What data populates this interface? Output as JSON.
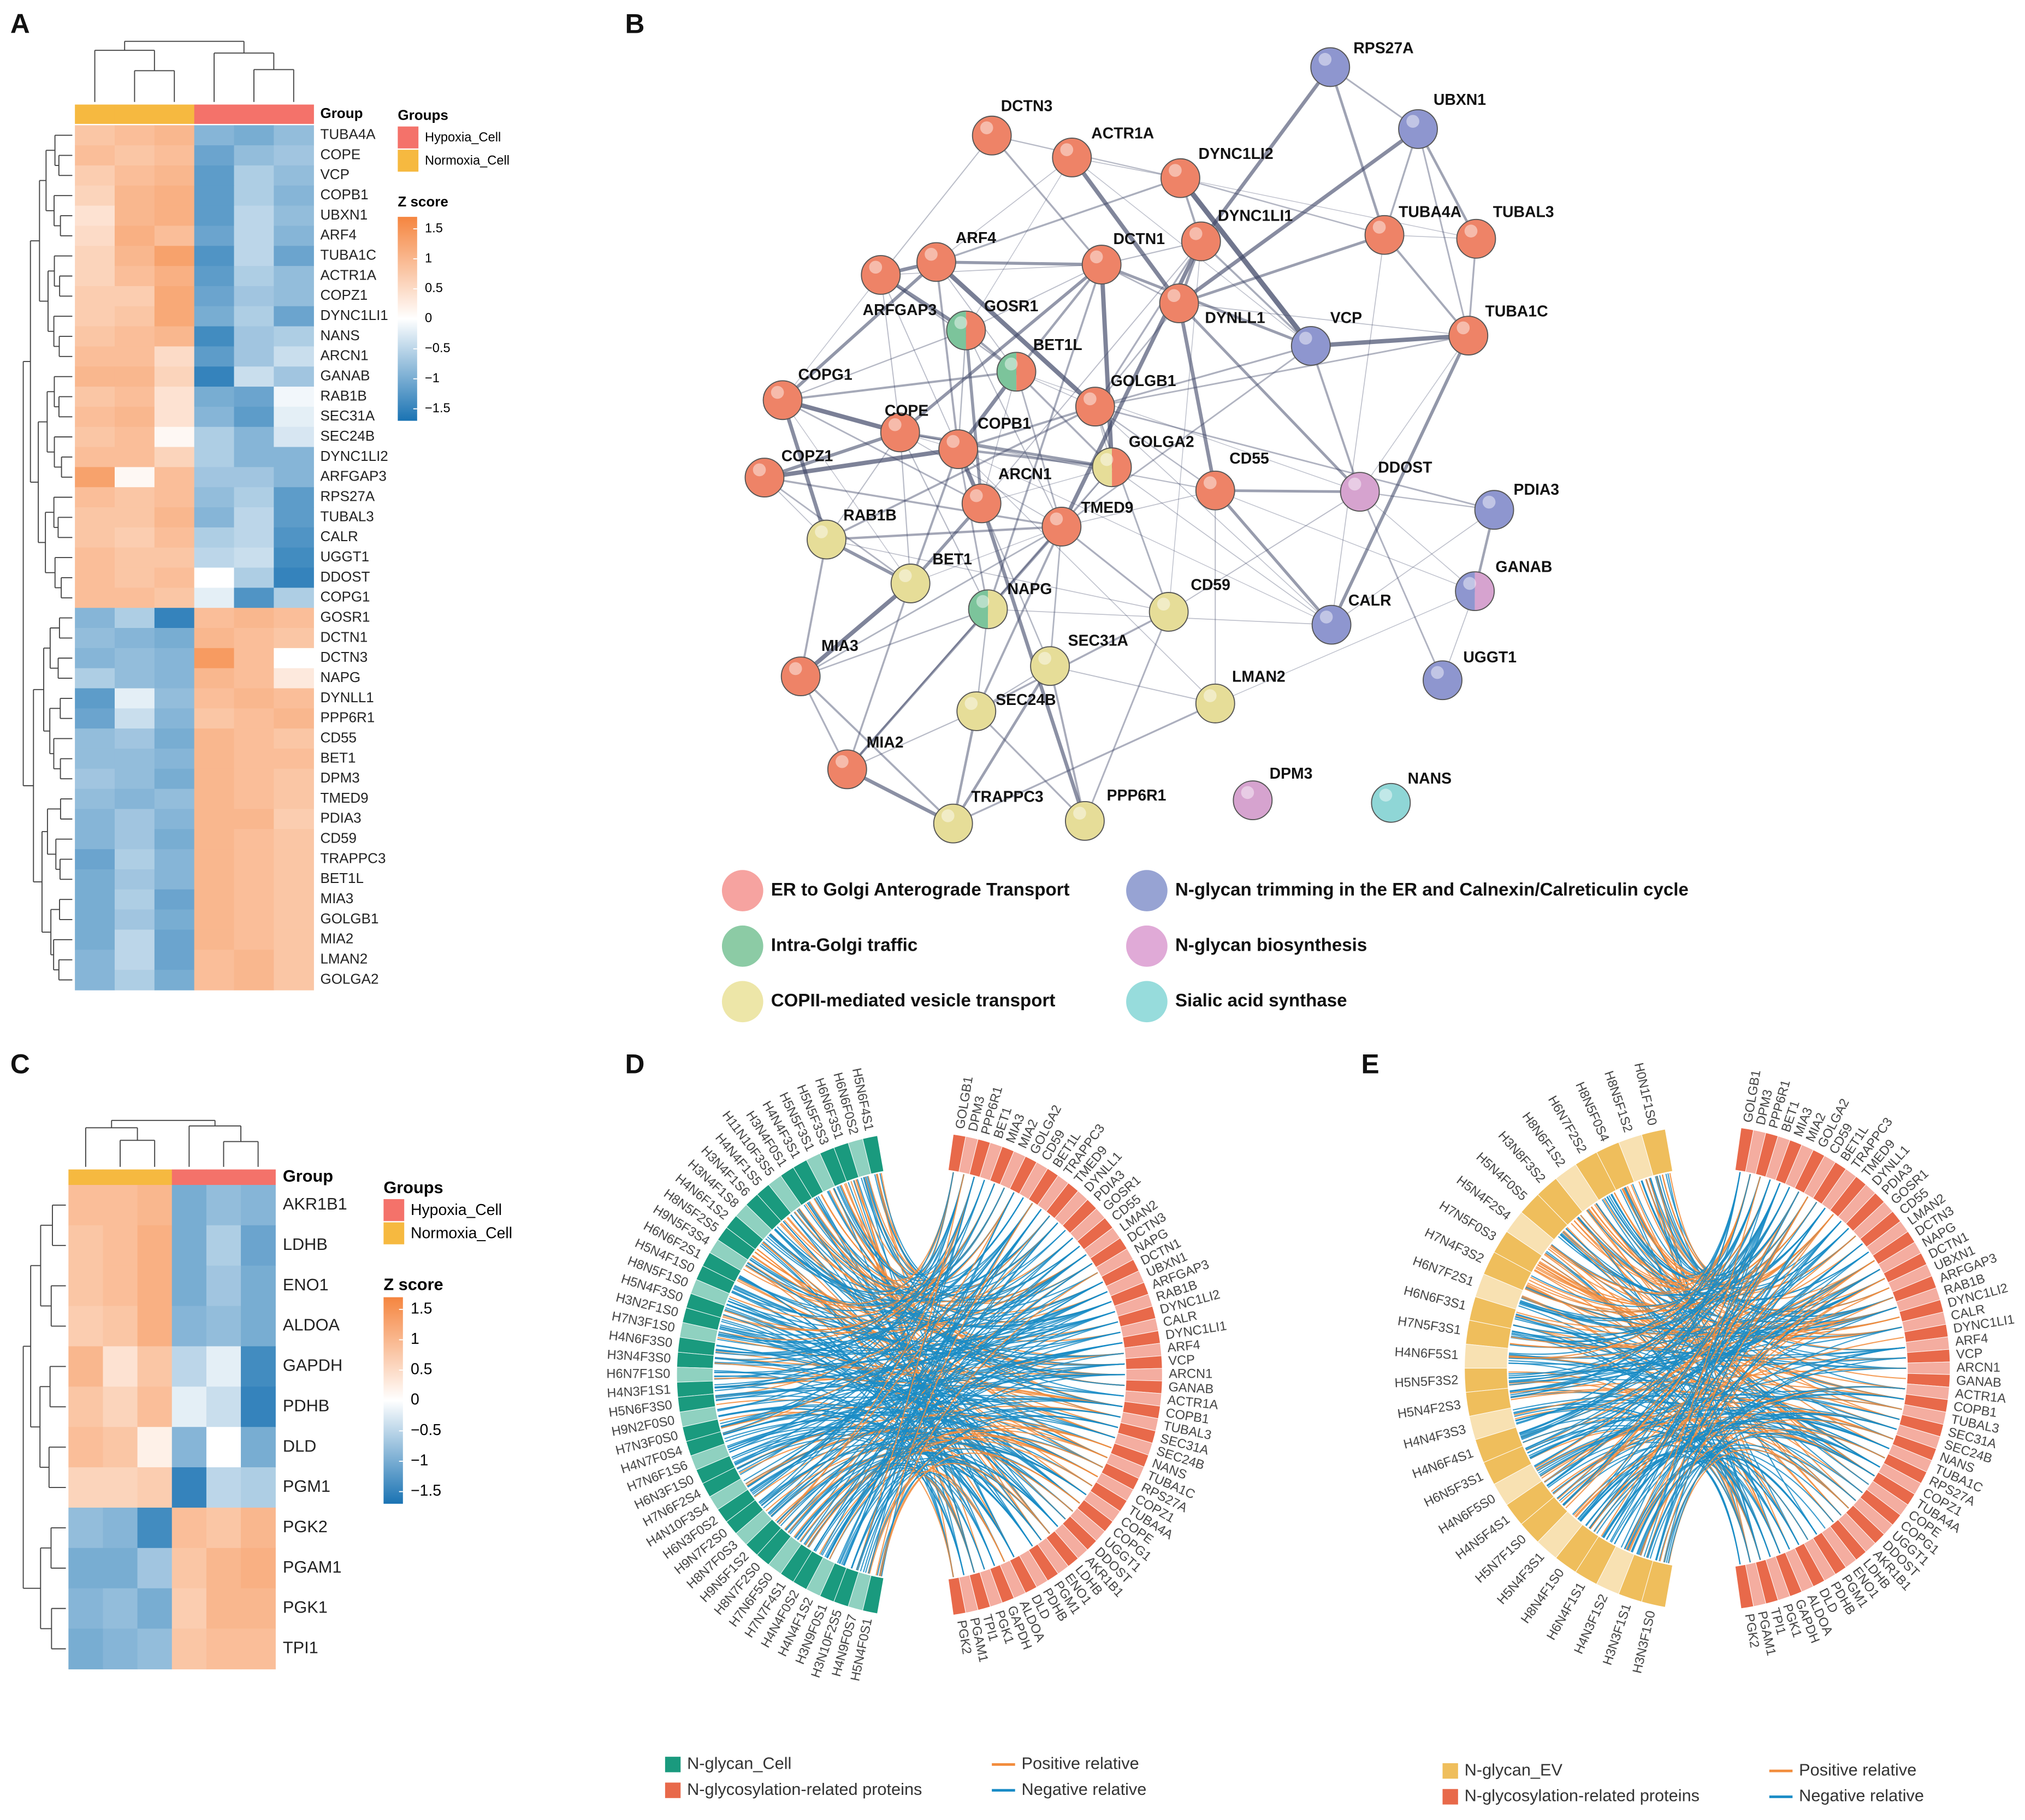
{
  "panel_a": {
    "label": "A",
    "group_header": "Group",
    "legend_title": "Groups",
    "groups": [
      "Hypoxia_Cell",
      "Normoxia_Cell"
    ],
    "group_colors": [
      "#f4726a",
      "#f6b940"
    ],
    "column_colors": [
      "#f6b940",
      "#f6b940",
      "#f6b940",
      "#f4726a",
      "#f4726a",
      "#f4726a"
    ],
    "zscore_title": "Z score",
    "zlim": [
      -1.7,
      1.7
    ],
    "zticks": [
      1.5,
      1,
      0.5,
      0,
      {
        "value": -0.5,
        "label": "−0.5"
      },
      {
        "value": -1,
        "label": "−1"
      },
      {
        "value": -1.5,
        "label": "−1.5"
      }
    ],
    "colorscale": [
      "#1a73b3",
      "#ffffff",
      "#f5853f"
    ],
    "genes": [
      "TUBA4A",
      "COPE",
      "VCP",
      "COPB1",
      "UBXN1",
      "ARF4",
      "TUBA1C",
      "ACTR1A",
      "COPZ1",
      "DYNC1LI1",
      "NANS",
      "ARCN1",
      "GANAB",
      "RAB1B",
      "SEC31A",
      "SEC24B",
      "DYNC1LI2",
      "ARFGAP3",
      "RPS27A",
      "TUBAL3",
      "CALR",
      "UGGT1",
      "DDOST",
      "COPG1",
      "GOSR1",
      "DCTN1",
      "DCTN3",
      "NAPG",
      "DYNLL1",
      "PPP6R1",
      "CD55",
      "BET1",
      "DPM3",
      "TMED9",
      "PDIA3",
      "CD59",
      "TRAPPC3",
      "BET1L",
      "MIA3",
      "GOLGB1",
      "MIA2",
      "LMAN2",
      "GOLGA2"
    ],
    "values": [
      [
        0.8,
        0.9,
        1.0,
        -0.9,
        -1.0,
        -0.8
      ],
      [
        0.9,
        0.8,
        0.9,
        -1.1,
        -0.8,
        -0.7
      ],
      [
        0.7,
        0.9,
        1.0,
        -1.2,
        -0.6,
        -0.8
      ],
      [
        0.6,
        1.0,
        1.1,
        -1.2,
        -0.6,
        -0.9
      ],
      [
        0.4,
        1.0,
        1.1,
        -1.2,
        -0.5,
        -0.8
      ],
      [
        0.5,
        1.1,
        0.9,
        -1.1,
        -0.5,
        -0.9
      ],
      [
        0.6,
        1.0,
        1.3,
        -1.3,
        -0.5,
        -1.1
      ],
      [
        0.6,
        0.9,
        1.1,
        -1.2,
        -0.6,
        -0.8
      ],
      [
        0.7,
        0.7,
        1.2,
        -1.1,
        -0.7,
        -0.8
      ],
      [
        0.7,
        0.8,
        1.2,
        -1.0,
        -0.6,
        -1.1
      ],
      [
        0.8,
        0.9,
        1.0,
        -1.4,
        -0.7,
        -0.6
      ],
      [
        0.9,
        0.9,
        0.5,
        -1.2,
        -0.7,
        -0.4
      ],
      [
        1.0,
        1.0,
        0.6,
        -1.5,
        -0.4,
        -0.7
      ],
      [
        0.8,
        0.9,
        0.4,
        -1.0,
        -1.1,
        -0.1
      ],
      [
        0.9,
        1.0,
        0.4,
        -0.9,
        -1.2,
        -0.2
      ],
      [
        0.8,
        0.9,
        0.1,
        -0.6,
        -0.9,
        -0.3
      ],
      [
        0.9,
        0.9,
        0.6,
        -0.6,
        -0.9,
        -0.9
      ],
      [
        1.3,
        0.1,
        0.9,
        -0.7,
        -0.7,
        -0.9
      ],
      [
        0.9,
        0.8,
        0.9,
        -0.8,
        -0.6,
        -1.2
      ],
      [
        0.8,
        0.8,
        1.0,
        -0.9,
        -0.5,
        -1.2
      ],
      [
        0.8,
        0.7,
        0.9,
        -0.6,
        -0.5,
        -1.3
      ],
      [
        0.9,
        0.8,
        0.8,
        -0.5,
        -0.4,
        -1.4
      ],
      [
        0.9,
        0.8,
        0.9,
        0.0,
        -0.6,
        -1.5
      ],
      [
        0.9,
        0.9,
        0.8,
        -0.2,
        -1.3,
        -0.6
      ],
      [
        -0.9,
        -0.6,
        -1.5,
        0.9,
        1.0,
        0.9
      ],
      [
        -0.8,
        -0.9,
        -1.0,
        1.0,
        0.9,
        0.8
      ],
      [
        -0.9,
        -0.8,
        -0.9,
        1.4,
        0.9,
        0.0
      ],
      [
        -0.6,
        -0.8,
        -0.9,
        1.0,
        0.9,
        0.3
      ],
      [
        -1.2,
        -0.2,
        -0.8,
        0.9,
        1.0,
        0.9
      ],
      [
        -1.1,
        -0.4,
        -0.9,
        0.8,
        0.9,
        1.0
      ],
      [
        -0.8,
        -0.7,
        -1.0,
        1.0,
        0.9,
        0.8
      ],
      [
        -0.8,
        -0.8,
        -0.9,
        1.0,
        0.9,
        0.9
      ],
      [
        -0.7,
        -0.8,
        -1.0,
        1.0,
        0.9,
        0.8
      ],
      [
        -0.8,
        -0.9,
        -0.8,
        1.0,
        0.9,
        0.8
      ],
      [
        -0.9,
        -0.7,
        -0.9,
        1.0,
        1.0,
        0.7
      ],
      [
        -0.9,
        -0.7,
        -1.0,
        1.0,
        0.9,
        0.8
      ],
      [
        -1.1,
        -0.6,
        -0.9,
        1.0,
        0.9,
        0.8
      ],
      [
        -1.0,
        -0.7,
        -0.9,
        1.0,
        0.9,
        0.8
      ],
      [
        -1.0,
        -0.6,
        -1.1,
        1.0,
        0.9,
        0.8
      ],
      [
        -1.0,
        -0.7,
        -1.0,
        1.0,
        0.9,
        0.8
      ],
      [
        -1.0,
        -0.5,
        -1.1,
        1.0,
        0.9,
        0.8
      ],
      [
        -0.9,
        -0.5,
        -1.1,
        0.9,
        1.0,
        0.8
      ],
      [
        -0.9,
        -0.6,
        -1.0,
        0.9,
        1.0,
        0.8
      ]
    ]
  },
  "panel_b": {
    "label": "B",
    "nodes": [
      {
        "name": "RPS27A",
        "colors": [
          "#8e96cf"
        ]
      },
      {
        "name": "UBXN1",
        "colors": [
          "#8e96cf"
        ]
      },
      {
        "name": "DCTN3",
        "colors": [
          "#ee8367"
        ]
      },
      {
        "name": "ACTR1A",
        "colors": [
          "#ee8367"
        ]
      },
      {
        "name": "DYNC1LI2",
        "colors": [
          "#ee8367"
        ]
      },
      {
        "name": "DYNC1LI1",
        "colors": [
          "#ee8367"
        ]
      },
      {
        "name": "DCTN1",
        "colors": [
          "#ee8367"
        ]
      },
      {
        "name": "TUBA4A",
        "colors": [
          "#ee8367"
        ]
      },
      {
        "name": "TUBAL3",
        "colors": [
          "#ee8367"
        ]
      },
      {
        "name": "ARF4",
        "colors": [
          "#ee8367"
        ]
      },
      {
        "name": "ARFGAP3",
        "colors": [
          "#ee8367"
        ]
      },
      {
        "name": "DYNLL1",
        "colors": [
          "#ee8367"
        ]
      },
      {
        "name": "VCP",
        "colors": [
          "#8e96cf"
        ]
      },
      {
        "name": "TUBA1C",
        "colors": [
          "#ee8367"
        ]
      },
      {
        "name": "GOSR1",
        "colors": [
          "#7cc49b",
          "#ee8367"
        ]
      },
      {
        "name": "BET1L",
        "colors": [
          "#7cc49b",
          "#ee8367"
        ]
      },
      {
        "name": "COPG1",
        "colors": [
          "#ee8367"
        ]
      },
      {
        "name": "GOLGB1",
        "colors": [
          "#ee8367"
        ]
      },
      {
        "name": "COPE",
        "colors": [
          "#ee8367"
        ]
      },
      {
        "name": "COPB1",
        "colors": [
          "#ee8367"
        ]
      },
      {
        "name": "GOLGA2",
        "colors": [
          "#e6dd98",
          "#ee8367"
        ]
      },
      {
        "name": "CD55",
        "colors": [
          "#ee8367"
        ]
      },
      {
        "name": "COPZ1",
        "colors": [
          "#ee8367"
        ]
      },
      {
        "name": "DDOST",
        "colors": [
          "#d6a3cf"
        ]
      },
      {
        "name": "PDIA3",
        "colors": [
          "#8e96cf"
        ]
      },
      {
        "name": "ARCN1",
        "colors": [
          "#ee8367"
        ]
      },
      {
        "name": "TMED9",
        "colors": [
          "#ee8367"
        ]
      },
      {
        "name": "RAB1B",
        "colors": [
          "#e6dd98"
        ]
      },
      {
        "name": "BET1",
        "colors": [
          "#e6dd98"
        ]
      },
      {
        "name": "GANAB",
        "colors": [
          "#8e96cf",
          "#d6a3cf"
        ]
      },
      {
        "name": "CALR",
        "colors": [
          "#8e96cf"
        ]
      },
      {
        "name": "NAPG",
        "colors": [
          "#7cc49b",
          "#e6dd98"
        ]
      },
      {
        "name": "CD59",
        "colors": [
          "#e6dd98"
        ]
      },
      {
        "name": "MIA3",
        "colors": [
          "#ee8367"
        ]
      },
      {
        "name": "SEC31A",
        "colors": [
          "#e6dd98"
        ]
      },
      {
        "name": "UGGT1",
        "colors": [
          "#8e96cf"
        ]
      },
      {
        "name": "LMAN2",
        "colors": [
          "#e6dd98"
        ]
      },
      {
        "name": "SEC24B",
        "colors": [
          "#e6dd98"
        ]
      },
      {
        "name": "MIA2",
        "colors": [
          "#ee8367"
        ]
      },
      {
        "name": "TRAPPC3",
        "colors": [
          "#e6dd98"
        ]
      },
      {
        "name": "PPP6R1",
        "colors": [
          "#e6dd98"
        ]
      },
      {
        "name": "DPM3",
        "colors": [
          "#d6a3cf"
        ]
      },
      {
        "name": "NANS",
        "colors": [
          "#8fd6d6"
        ]
      }
    ],
    "legend": [
      {
        "name": "ER to Golgi Anterograde Transport",
        "color": "#f6a3a0"
      },
      {
        "name": "Intra-Golgi traffic",
        "color": "#8ccba5"
      },
      {
        "name": "COPII-mediated vesicle transport",
        "color": "#ede6a8"
      },
      {
        "name": "N-glycan trimming in the ER and Calnexin/Calreticulin cycle",
        "color": "#97a3d3"
      },
      {
        "name": "N-glycan biosynthesis",
        "color": "#e0aad7"
      },
      {
        "name": "Sialic acid synthase",
        "color": "#97dcdc"
      }
    ]
  },
  "panel_c": {
    "label": "C",
    "group_header": "Group",
    "legend_title": "Groups",
    "groups": [
      "Hypoxia_Cell",
      "Normoxia_Cell"
    ],
    "group_colors": [
      "#f4726a",
      "#f6b940"
    ],
    "column_colors": [
      "#f6b940",
      "#f6b940",
      "#f6b940",
      "#f4726a",
      "#f4726a",
      "#f4726a"
    ],
    "zscore_title": "Z score",
    "zlim": [
      -1.7,
      1.7
    ],
    "zticks": [
      1.5,
      1,
      0.5,
      0,
      {
        "value": -0.5,
        "label": "−0.5"
      },
      {
        "value": -1,
        "label": "−1"
      },
      {
        "value": -1.5,
        "label": "−1.5"
      }
    ],
    "colorscale": [
      "#1a73b3",
      "#ffffff",
      "#f5853f"
    ],
    "genes": [
      "AKR1B1",
      "LDHB",
      "ENO1",
      "ALDOA",
      "GAPDH",
      "PDHB",
      "DLD",
      "PGM1",
      "PGK2",
      "PGAM1",
      "PGK1",
      "TPI1"
    ],
    "values": [
      [
        0.9,
        0.9,
        1.0,
        -1.0,
        -0.8,
        -0.9
      ],
      [
        0.8,
        0.9,
        1.1,
        -1.0,
        -0.6,
        -1.1
      ],
      [
        0.8,
        0.9,
        1.1,
        -1.0,
        -0.7,
        -1.0
      ],
      [
        0.7,
        0.8,
        1.1,
        -0.9,
        -0.8,
        -1.0
      ],
      [
        1.0,
        0.4,
        0.8,
        -0.5,
        -0.2,
        -1.4
      ],
      [
        0.8,
        0.6,
        0.9,
        -0.2,
        -0.4,
        -1.5
      ],
      [
        0.9,
        0.8,
        0.2,
        -0.9,
        0.0,
        -1.0
      ],
      [
        0.6,
        0.6,
        0.7,
        -1.5,
        -0.5,
        -0.6
      ],
      [
        -0.8,
        -0.9,
        -1.4,
        0.9,
        0.8,
        1.0
      ],
      [
        -1.0,
        -1.0,
        -0.7,
        0.8,
        1.0,
        1.1
      ],
      [
        -0.9,
        -0.8,
        -1.0,
        0.7,
        1.0,
        1.0
      ],
      [
        -1.0,
        -0.9,
        -0.8,
        0.8,
        0.9,
        0.9
      ]
    ]
  },
  "panel_d": {
    "label": "D",
    "glycans": [
      "H5N6F4S1",
      "H6N6F0S2",
      "H6N6F3S1",
      "H5N5F3S3",
      "H5N5F3S1",
      "H4N4F3S1",
      "H3N4F0S1",
      "H11N10F3S5",
      "H4N4F1S5",
      "H3N4F1S6",
      "H3N4F1S8",
      "H4N6F1S2",
      "H8N5F2S5",
      "H9N5F3S4",
      "H6N6F2S1",
      "H5N4F1S0",
      "H8N5F1S0",
      "H5N4F3S0",
      "H3N2F1S0",
      "H7N3F1S0",
      "H4N6F3S0",
      "H3N4F3S0",
      "H6N7F1S0",
      "H4N3F1S1",
      "H5N6F3S0",
      "H9N2F0S0",
      "H7N3F0S0",
      "H4N7F0S4",
      "H7N6F1S6",
      "H6N3F1S0",
      "H7N6F2S4",
      "H4N10F3S4",
      "H6N3F0S2",
      "H9N7F2S0",
      "H8N7F0S3",
      "H9N5F1S2",
      "H8N7F2S0",
      "H7N6F5S0",
      "H7N7F4S1",
      "H4N4F0S2",
      "H4N4F1S2",
      "H3N9F0S1",
      "H3N10F2S5",
      "H4N9F0S7",
      "H5N4F0S1"
    ],
    "proteins": [
      "GOLGB1",
      "DPM3",
      "PPP6R1",
      "BET1",
      "MIA3",
      "MIA2",
      "GOLGA2",
      "CD59",
      "BET1L",
      "TRAPPC3",
      "TMED9",
      "DYNLL1",
      "PDIA3",
      "GOSR1",
      "CD55",
      "LMAN2",
      "DCTN3",
      "NAPG",
      "DCTN1",
      "UBXN1",
      "ARFGAP3",
      "RAB1B",
      "DYNC1LI2",
      "CALR",
      "DYNC1LI1",
      "ARF4",
      "VCP",
      "ARCN1",
      "GANAB",
      "ACTR1A",
      "COPB1",
      "TUBAL3",
      "SEC31A",
      "SEC24B",
      "NANS",
      "TUBA1C",
      "RPS27A",
      "COPZ1",
      "TUBA4A",
      "COPE",
      "COPG1",
      "UGGT1",
      "DDOST",
      "AKR1B1",
      "LDHB",
      "ENO1",
      "PGM1",
      "PDHB",
      "DLD",
      "ALDOA",
      "GAPDH",
      "PGK1",
      "TPI1",
      "PGAM1",
      "PGK2"
    ],
    "legend": [
      "N-glycan_Cell",
      "N-glycosylation-related proteins"
    ],
    "legend_colors": [
      "#1a9a7e",
      "#e8694a"
    ],
    "glycan_colors": [
      "#1a9a7e",
      "#8fd1c0"
    ],
    "protein_colors": [
      "#e8694a",
      "#f4ada0"
    ],
    "lines": [
      "Positive relative",
      "Negative relative"
    ],
    "line_colors": [
      "#f28c3c",
      "#1a8cc6"
    ]
  },
  "panel_e": {
    "label": "E",
    "glycans": [
      "H0N1F1S0",
      "H8N5F1S2",
      "H8N5F0S4",
      "H6N7F2S2",
      "H8N6F1S2",
      "H3N8F3S2",
      "H5N4F0S5",
      "H5N4F2S4",
      "H7N5F0S3",
      "H7N4F3S2",
      "H6N7F2S1",
      "H6N6F3S1",
      "H7N5F3S1",
      "H4N6F5S1",
      "H5N5F3S2",
      "H5N4F2S3",
      "H4N4F3S3",
      "H4N6F4S1",
      "H6N5F3S1",
      "H4N6F5S0",
      "H4N5F4S1",
      "H5N7F1S0",
      "H5N4F3S1",
      "H8N4F1S0",
      "H6N4F1S1",
      "H4N3F1S2",
      "H3N3F1S1",
      "H3N3F1S0"
    ],
    "proteins": [
      "GOLGB1",
      "DPM3",
      "PPP6R1",
      "BET1",
      "MIA3",
      "MIA2",
      "GOLGA2",
      "CD59",
      "BET1L",
      "TRAPPC3",
      "TMED9",
      "DYNLL1",
      "PDIA3",
      "GOSR1",
      "CD55",
      "LMAN2",
      "DCTN3",
      "NAPG",
      "DCTN1",
      "UBXN1",
      "ARFGAP3",
      "RAB1B",
      "DYNC1LI2",
      "CALR",
      "DYNC1LI1",
      "ARF4",
      "VCP",
      "ARCN1",
      "GANAB",
      "ACTR1A",
      "COPB1",
      "TUBAL3",
      "SEC31A",
      "SEC24B",
      "NANS",
      "TUBA1C",
      "RPS27A",
      "COPZ1",
      "TUBA4A",
      "COPE",
      "COPG1",
      "UGGT1",
      "DDOST",
      "AKR1B1",
      "LDHB",
      "ENO1",
      "PGM1",
      "PDHB",
      "DLD",
      "ALDOA",
      "GAPDH",
      "PGK1",
      "TPI1",
      "PGAM1",
      "PGK2"
    ],
    "legend": [
      "N-glycan_EV",
      "N-glycosylation-related proteins"
    ],
    "legend_colors": [
      "#efbe5c",
      "#e8694a"
    ],
    "glycan_colors": [
      "#efbe5c",
      "#f8e1b2"
    ],
    "protein_colors": [
      "#e8694a",
      "#f4ada0"
    ],
    "lines": [
      "Positive relative",
      "Negative relative"
    ],
    "line_colors": [
      "#f28c3c",
      "#1a8cc6"
    ]
  }
}
